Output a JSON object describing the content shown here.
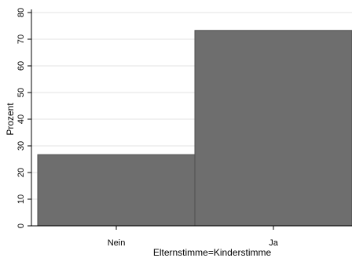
{
  "chart_data": {
    "type": "bar",
    "categories": [
      "Nein",
      "Ja"
    ],
    "values": [
      26.7,
      73.3
    ],
    "title": "",
    "xlabel": "Elternstimme=Kinderstimme",
    "ylabel": "Prozent",
    "ylim": [
      0,
      80
    ],
    "yticks": [
      "0",
      "10",
      "20",
      "30",
      "40",
      "50",
      "60",
      "70",
      "80"
    ],
    "grid": true,
    "colors": {
      "bar": "#6e6e6e",
      "bar_edge": "#4f4f4f",
      "grid": "#e3e3e3",
      "axis": "#000000",
      "background": "#ffffff"
    }
  }
}
